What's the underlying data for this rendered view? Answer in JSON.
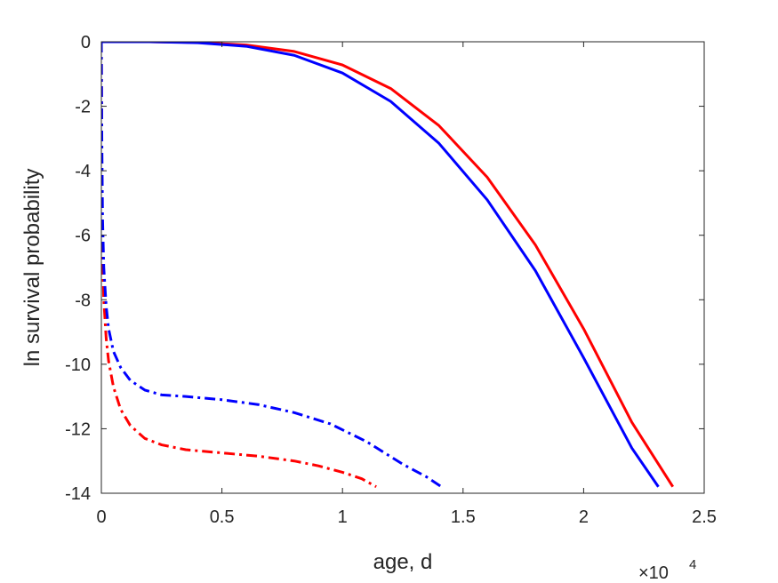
{
  "chart_data": {
    "type": "line",
    "xlabel": "age, d",
    "ylabel": "ln survival probability",
    "x_exponent_label": "×10",
    "x_exponent_power": "4",
    "xlim": [
      0,
      25000
    ],
    "ylim": [
      -14,
      0
    ],
    "grid": false,
    "xticks": [
      0,
      5000,
      10000,
      15000,
      20000,
      25000
    ],
    "xtick_labels": [
      "0",
      "0.5",
      "1",
      "1.5",
      "2",
      "2.5"
    ],
    "yticks": [
      0,
      -2,
      -4,
      -6,
      -8,
      -10,
      -12,
      -14
    ],
    "ytick_labels": [
      "0",
      "-2",
      "-4",
      "-6",
      "-8",
      "-10",
      "-12",
      "-14"
    ],
    "series": [
      {
        "color": "#ff0000",
        "style": "solid",
        "x": [
          0,
          2000,
          4000,
          6000,
          8000,
          10000,
          12000,
          14000,
          16000,
          18000,
          20000,
          22000,
          23700
        ],
        "y": [
          0,
          0,
          -0.02,
          -0.1,
          -0.3,
          -0.72,
          -1.45,
          -2.6,
          -4.2,
          -6.3,
          -8.9,
          -11.8,
          -13.8
        ]
      },
      {
        "color": "#0000ff",
        "style": "solid",
        "x": [
          0,
          2000,
          4000,
          6000,
          8000,
          10000,
          12000,
          14000,
          16000,
          18000,
          20000,
          22000,
          23100
        ],
        "y": [
          0,
          0,
          -0.03,
          -0.14,
          -0.42,
          -0.97,
          -1.85,
          -3.15,
          -4.9,
          -7.1,
          -9.8,
          -12.6,
          -13.8
        ]
      },
      {
        "color": "#ff0000",
        "style": "dashdot",
        "x": [
          0,
          20,
          50,
          100,
          200,
          300,
          500,
          800,
          1200,
          1800,
          2500,
          3500,
          5000,
          6500,
          8000,
          9000,
          10000,
          10800,
          11400
        ],
        "y": [
          0,
          -4.0,
          -6.5,
          -8.0,
          -9.2,
          -9.9,
          -10.7,
          -11.4,
          -11.9,
          -12.3,
          -12.5,
          -12.65,
          -12.75,
          -12.85,
          -13.0,
          -13.15,
          -13.35,
          -13.55,
          -13.8
        ]
      },
      {
        "color": "#0000ff",
        "style": "dashdot",
        "x": [
          0,
          20,
          50,
          100,
          200,
          300,
          500,
          800,
          1200,
          1800,
          2500,
          3500,
          5000,
          6500,
          8000,
          9500,
          11000,
          12500,
          13500,
          14100
        ],
        "y": [
          0,
          -3.0,
          -5.5,
          -7.0,
          -8.2,
          -8.9,
          -9.6,
          -10.1,
          -10.5,
          -10.8,
          -10.95,
          -11.0,
          -11.1,
          -11.25,
          -11.5,
          -11.85,
          -12.4,
          -13.1,
          -13.5,
          -13.8
        ]
      }
    ]
  }
}
